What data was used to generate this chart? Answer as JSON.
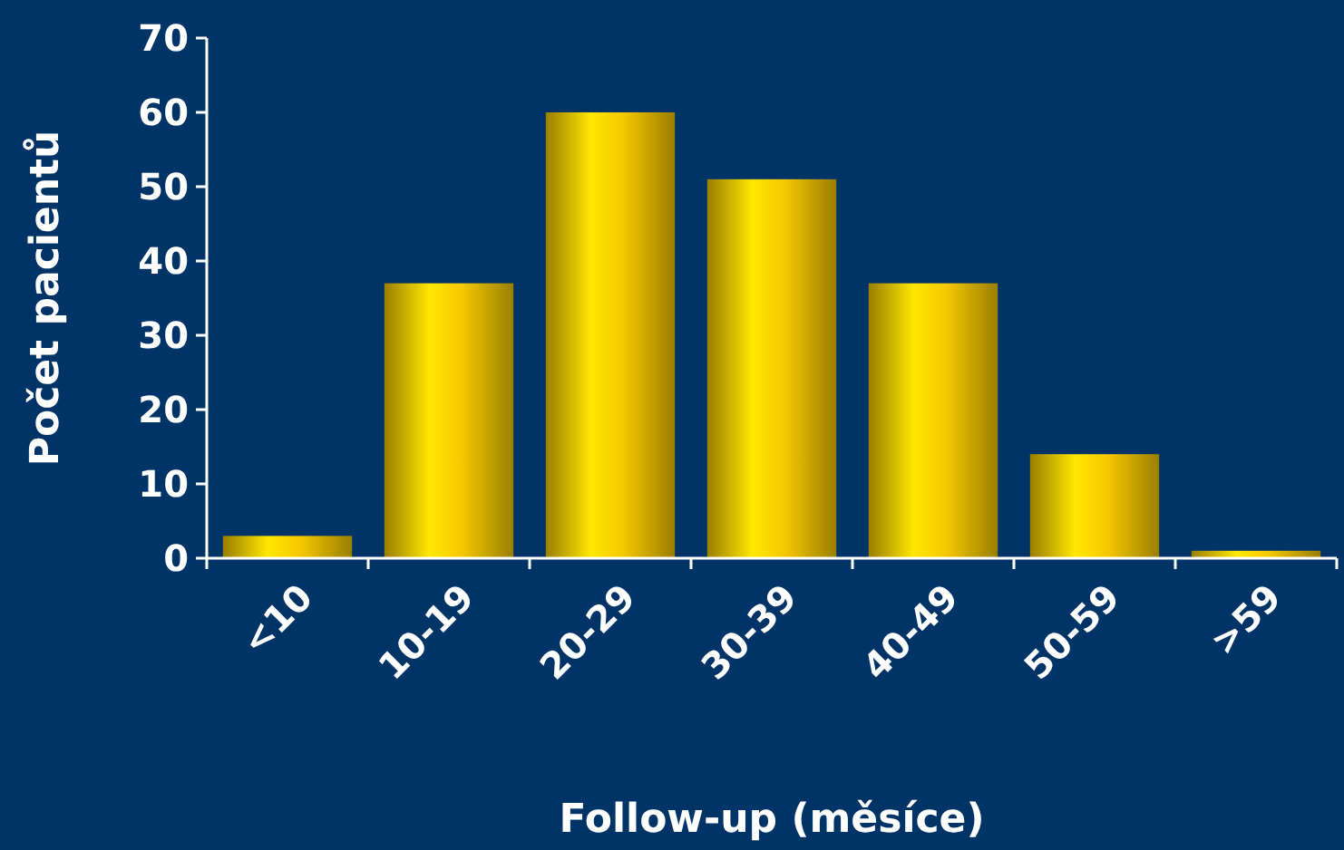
{
  "chart_data": {
    "type": "bar",
    "xlabel": "Follow-up (měsíce)",
    "ylabel": "Počet pacientů",
    "categories": [
      "<10",
      "10-19",
      "20-29",
      "30-39",
      "40-49",
      "50-59",
      ">59"
    ],
    "values": [
      3,
      37,
      60,
      51,
      37,
      14,
      1
    ],
    "color": "#f5c800",
    "ylim": [
      0,
      70
    ],
    "yticks": [
      0,
      10,
      20,
      30,
      40,
      50,
      60,
      70
    ],
    "grid": false
  }
}
